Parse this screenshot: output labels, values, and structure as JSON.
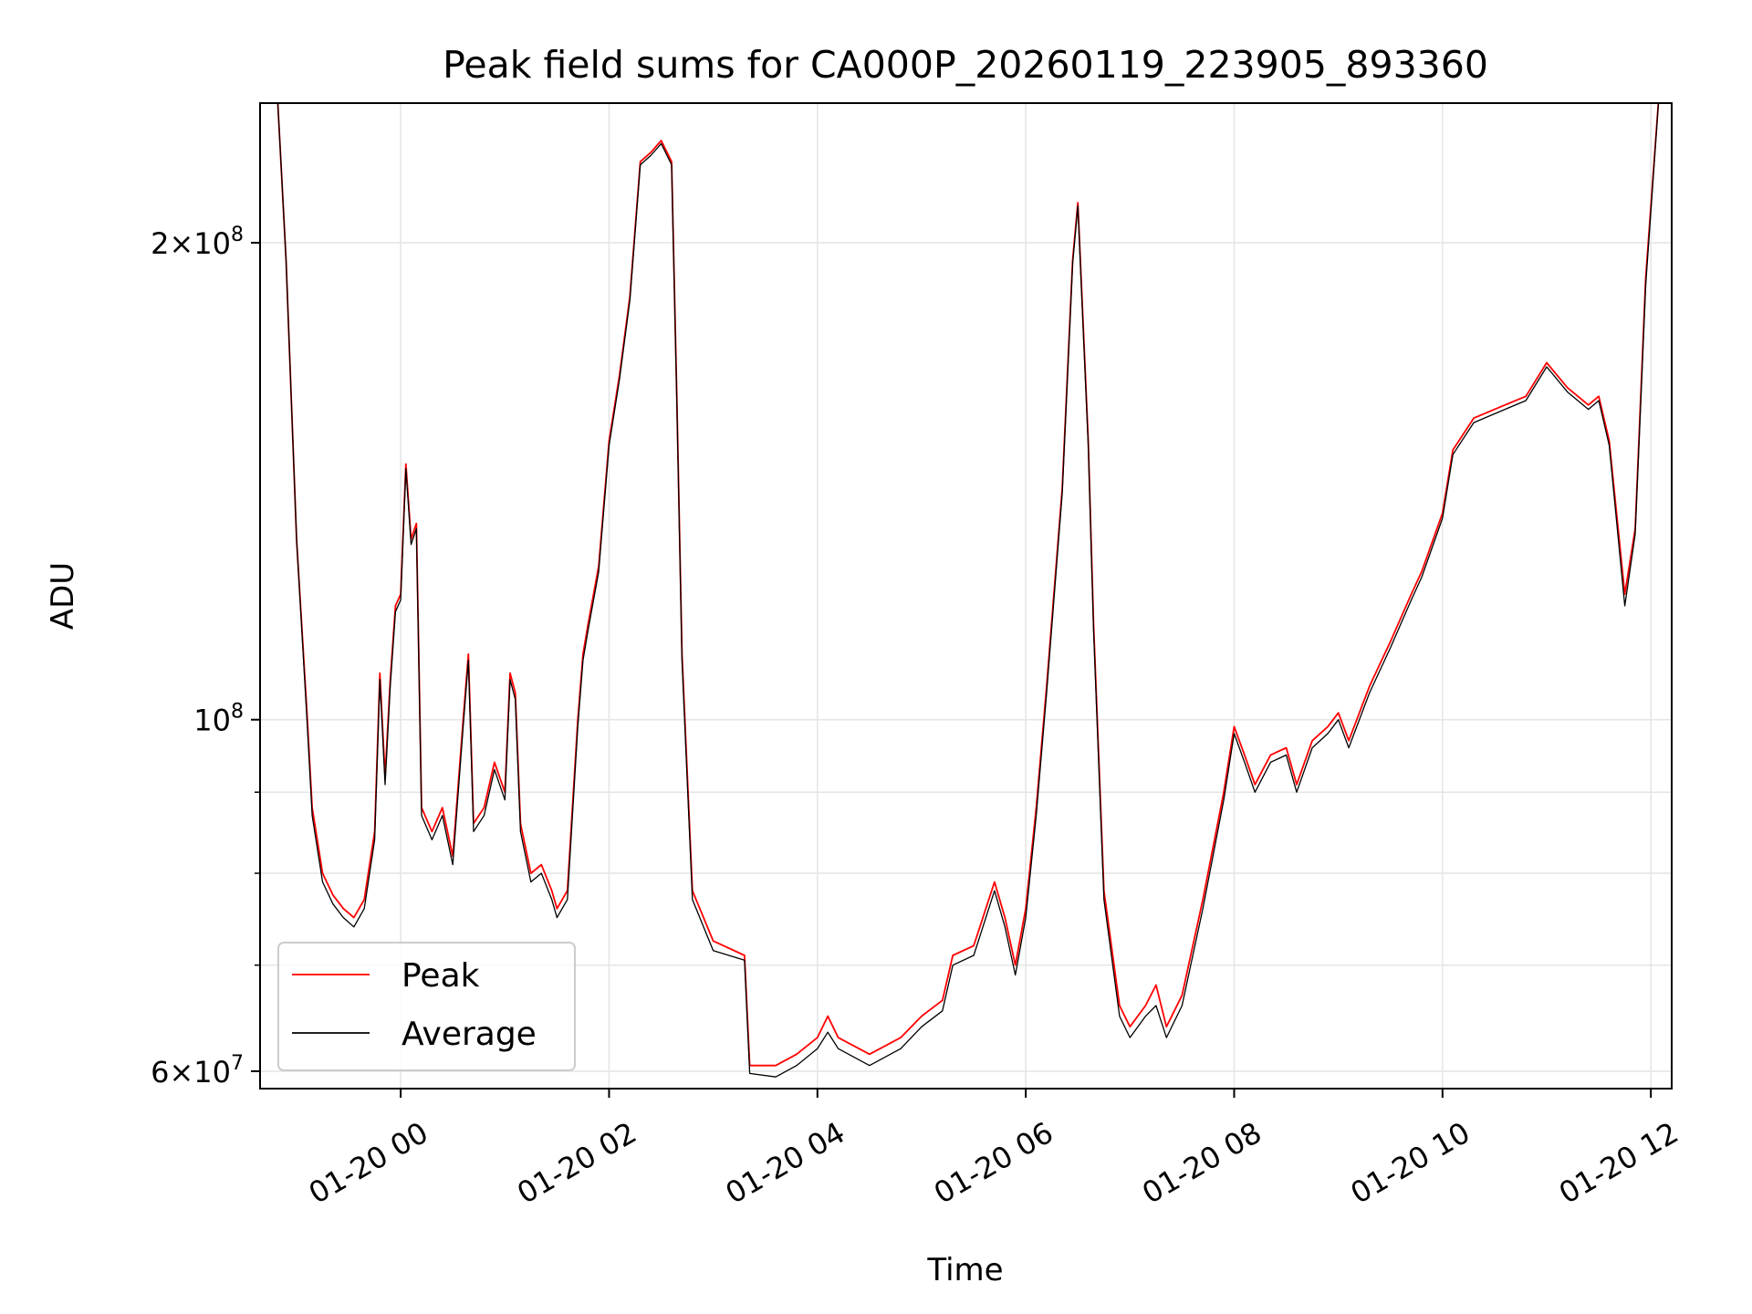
{
  "chart_data": {
    "type": "line",
    "title": "Peak field sums for CA000P_20260119_223905_893360",
    "xlabel": "Time",
    "ylabel": "ADU",
    "yscale": "log",
    "grid": true,
    "legend_position": "lower-left",
    "x_unit": "hours after 2026-01-20 00:00",
    "xlim": [
      -1.35,
      12.2
    ],
    "ylim": [
      58500000,
      245000000
    ],
    "x_tick_values": [
      0,
      2,
      4,
      6,
      8,
      10,
      12
    ],
    "x_tick_labels": [
      "01-20 00",
      "01-20 02",
      "01-20 04",
      "01-20 06",
      "01-20 08",
      "01-20 10",
      "01-20 12"
    ],
    "y_major_ticks": [
      {
        "value": 60000000,
        "mant": "6",
        "exp": "7"
      },
      {
        "value": 100000000,
        "mant": "",
        "exp": "8"
      },
      {
        "value": 200000000,
        "mant": "2",
        "exp": "8"
      }
    ],
    "y_minor_grid": [
      70000000,
      80000000,
      90000000
    ],
    "series": [
      {
        "name": "Peak",
        "color": "#ff0000",
        "points": [
          [
            -1.2,
            260000000
          ],
          [
            -1.1,
            195000000
          ],
          [
            -1.0,
            130000000
          ],
          [
            -0.9,
            101000000
          ],
          [
            -0.85,
            88000000
          ],
          [
            -0.75,
            80000000
          ],
          [
            -0.65,
            77500000
          ],
          [
            -0.55,
            76000000
          ],
          [
            -0.45,
            75000000
          ],
          [
            -0.35,
            77000000
          ],
          [
            -0.25,
            85000000
          ],
          [
            -0.2,
            107000000
          ],
          [
            -0.15,
            92000000
          ],
          [
            -0.1,
            106000000
          ],
          [
            -0.05,
            118000000
          ],
          [
            0.0,
            120000000
          ],
          [
            0.05,
            145000000
          ],
          [
            0.1,
            130000000
          ],
          [
            0.15,
            133000000
          ],
          [
            0.2,
            88000000
          ],
          [
            0.3,
            85000000
          ],
          [
            0.4,
            88000000
          ],
          [
            0.5,
            82000000
          ],
          [
            0.6,
            100000000
          ],
          [
            0.65,
            110000000
          ],
          [
            0.7,
            86000000
          ],
          [
            0.8,
            88000000
          ],
          [
            0.9,
            94000000
          ],
          [
            1.0,
            90000000
          ],
          [
            1.05,
            107000000
          ],
          [
            1.1,
            104000000
          ],
          [
            1.15,
            86000000
          ],
          [
            1.25,
            80000000
          ],
          [
            1.35,
            81000000
          ],
          [
            1.45,
            78000000
          ],
          [
            1.5,
            76000000
          ],
          [
            1.6,
            78000000
          ],
          [
            1.7,
            100000000
          ],
          [
            1.75,
            110000000
          ],
          [
            1.8,
            115000000
          ],
          [
            1.9,
            125000000
          ],
          [
            2.0,
            150000000
          ],
          [
            2.1,
            165000000
          ],
          [
            2.2,
            185000000
          ],
          [
            2.3,
            225000000
          ],
          [
            2.4,
            228000000
          ],
          [
            2.5,
            232000000
          ],
          [
            2.6,
            225000000
          ],
          [
            2.65,
            160000000
          ],
          [
            2.7,
            110000000
          ],
          [
            2.8,
            78000000
          ],
          [
            3.0,
            72500000
          ],
          [
            3.3,
            71000000
          ],
          [
            3.35,
            60500000
          ],
          [
            3.6,
            60500000
          ],
          [
            3.8,
            61500000
          ],
          [
            4.0,
            63000000
          ],
          [
            4.1,
            65000000
          ],
          [
            4.2,
            63000000
          ],
          [
            4.5,
            61500000
          ],
          [
            4.8,
            63000000
          ],
          [
            5.0,
            65000000
          ],
          [
            5.2,
            66500000
          ],
          [
            5.3,
            71000000
          ],
          [
            5.5,
            72000000
          ],
          [
            5.7,
            79000000
          ],
          [
            5.8,
            75000000
          ],
          [
            5.9,
            70000000
          ],
          [
            6.0,
            76000000
          ],
          [
            6.1,
            88000000
          ],
          [
            6.2,
            105000000
          ],
          [
            6.35,
            140000000
          ],
          [
            6.45,
            195000000
          ],
          [
            6.5,
            212000000
          ],
          [
            6.6,
            150000000
          ],
          [
            6.65,
            115000000
          ],
          [
            6.75,
            78000000
          ],
          [
            6.9,
            66000000
          ],
          [
            7.0,
            64000000
          ],
          [
            7.15,
            66000000
          ],
          [
            7.25,
            68000000
          ],
          [
            7.35,
            64000000
          ],
          [
            7.5,
            67000000
          ],
          [
            7.7,
            77000000
          ],
          [
            7.9,
            90000000
          ],
          [
            8.0,
            99000000
          ],
          [
            8.1,
            95000000
          ],
          [
            8.2,
            91000000
          ],
          [
            8.35,
            95000000
          ],
          [
            8.5,
            96000000
          ],
          [
            8.6,
            91000000
          ],
          [
            8.75,
            97000000
          ],
          [
            8.9,
            99000000
          ],
          [
            9.0,
            101000000
          ],
          [
            9.1,
            97000000
          ],
          [
            9.3,
            105000000
          ],
          [
            9.5,
            112000000
          ],
          [
            9.7,
            120000000
          ],
          [
            9.8,
            124000000
          ],
          [
            10.0,
            135000000
          ],
          [
            10.1,
            148000000
          ],
          [
            10.3,
            155000000
          ],
          [
            10.6,
            158000000
          ],
          [
            10.8,
            160000000
          ],
          [
            11.0,
            168000000
          ],
          [
            11.2,
            162000000
          ],
          [
            11.4,
            158000000
          ],
          [
            11.5,
            160000000
          ],
          [
            11.6,
            150000000
          ],
          [
            11.75,
            120000000
          ],
          [
            11.85,
            132000000
          ],
          [
            11.95,
            190000000
          ],
          [
            12.1,
            260000000
          ]
        ]
      },
      {
        "name": "Average",
        "color": "#000000",
        "points": [
          [
            -1.2,
            260000000
          ],
          [
            -1.1,
            195000000
          ],
          [
            -1.0,
            130000000
          ],
          [
            -0.9,
            100000000
          ],
          [
            -0.85,
            87000000
          ],
          [
            -0.75,
            79000000
          ],
          [
            -0.65,
            76500000
          ],
          [
            -0.55,
            75000000
          ],
          [
            -0.45,
            74000000
          ],
          [
            -0.35,
            76000000
          ],
          [
            -0.25,
            84000000
          ],
          [
            -0.2,
            106000000
          ],
          [
            -0.15,
            91000000
          ],
          [
            -0.1,
            105000000
          ],
          [
            -0.05,
            117000000
          ],
          [
            0.0,
            119000000
          ],
          [
            0.05,
            144000000
          ],
          [
            0.1,
            129000000
          ],
          [
            0.15,
            132000000
          ],
          [
            0.2,
            87000000
          ],
          [
            0.3,
            84000000
          ],
          [
            0.4,
            87000000
          ],
          [
            0.5,
            81000000
          ],
          [
            0.6,
            99000000
          ],
          [
            0.65,
            109000000
          ],
          [
            0.7,
            85000000
          ],
          [
            0.8,
            87000000
          ],
          [
            0.9,
            93000000
          ],
          [
            1.0,
            89000000
          ],
          [
            1.05,
            106000000
          ],
          [
            1.1,
            103000000
          ],
          [
            1.15,
            85000000
          ],
          [
            1.25,
            79000000
          ],
          [
            1.35,
            80000000
          ],
          [
            1.45,
            77000000
          ],
          [
            1.5,
            75000000
          ],
          [
            1.6,
            77000000
          ],
          [
            1.7,
            99000000
          ],
          [
            1.75,
            109000000
          ],
          [
            1.8,
            114000000
          ],
          [
            1.9,
            124000000
          ],
          [
            2.0,
            149000000
          ],
          [
            2.1,
            164000000
          ],
          [
            2.2,
            184000000
          ],
          [
            2.3,
            224000000
          ],
          [
            2.4,
            227000000
          ],
          [
            2.5,
            231000000
          ],
          [
            2.6,
            224000000
          ],
          [
            2.65,
            159000000
          ],
          [
            2.7,
            109000000
          ],
          [
            2.8,
            77000000
          ],
          [
            3.0,
            71500000
          ],
          [
            3.3,
            70500000
          ],
          [
            3.35,
            59800000
          ],
          [
            3.6,
            59500000
          ],
          [
            3.8,
            60500000
          ],
          [
            4.0,
            62000000
          ],
          [
            4.1,
            63500000
          ],
          [
            4.2,
            62000000
          ],
          [
            4.5,
            60500000
          ],
          [
            4.8,
            62000000
          ],
          [
            5.0,
            64000000
          ],
          [
            5.2,
            65500000
          ],
          [
            5.3,
            70000000
          ],
          [
            5.5,
            71000000
          ],
          [
            5.7,
            78000000
          ],
          [
            5.8,
            74000000
          ],
          [
            5.9,
            69000000
          ],
          [
            6.0,
            75000000
          ],
          [
            6.1,
            87000000
          ],
          [
            6.2,
            104000000
          ],
          [
            6.35,
            139000000
          ],
          [
            6.45,
            194000000
          ],
          [
            6.5,
            211000000
          ],
          [
            6.6,
            149000000
          ],
          [
            6.65,
            114000000
          ],
          [
            6.75,
            77000000
          ],
          [
            6.9,
            65000000
          ],
          [
            7.0,
            63000000
          ],
          [
            7.15,
            65000000
          ],
          [
            7.25,
            66000000
          ],
          [
            7.35,
            63000000
          ],
          [
            7.5,
            66000000
          ],
          [
            7.7,
            76000000
          ],
          [
            7.9,
            89000000
          ],
          [
            8.0,
            98000000
          ],
          [
            8.1,
            94000000
          ],
          [
            8.2,
            90000000
          ],
          [
            8.35,
            94000000
          ],
          [
            8.5,
            95000000
          ],
          [
            8.6,
            90000000
          ],
          [
            8.75,
            96000000
          ],
          [
            8.9,
            98000000
          ],
          [
            9.0,
            100000000
          ],
          [
            9.1,
            96000000
          ],
          [
            9.3,
            104000000
          ],
          [
            9.5,
            111000000
          ],
          [
            9.7,
            119000000
          ],
          [
            9.8,
            123000000
          ],
          [
            10.0,
            134000000
          ],
          [
            10.1,
            147000000
          ],
          [
            10.3,
            154000000
          ],
          [
            10.6,
            157000000
          ],
          [
            10.8,
            159000000
          ],
          [
            11.0,
            167000000
          ],
          [
            11.2,
            161000000
          ],
          [
            11.4,
            157000000
          ],
          [
            11.5,
            159000000
          ],
          [
            11.6,
            149000000
          ],
          [
            11.75,
            118000000
          ],
          [
            11.85,
            131000000
          ],
          [
            11.95,
            188000000
          ],
          [
            12.1,
            260000000
          ]
        ]
      }
    ]
  }
}
